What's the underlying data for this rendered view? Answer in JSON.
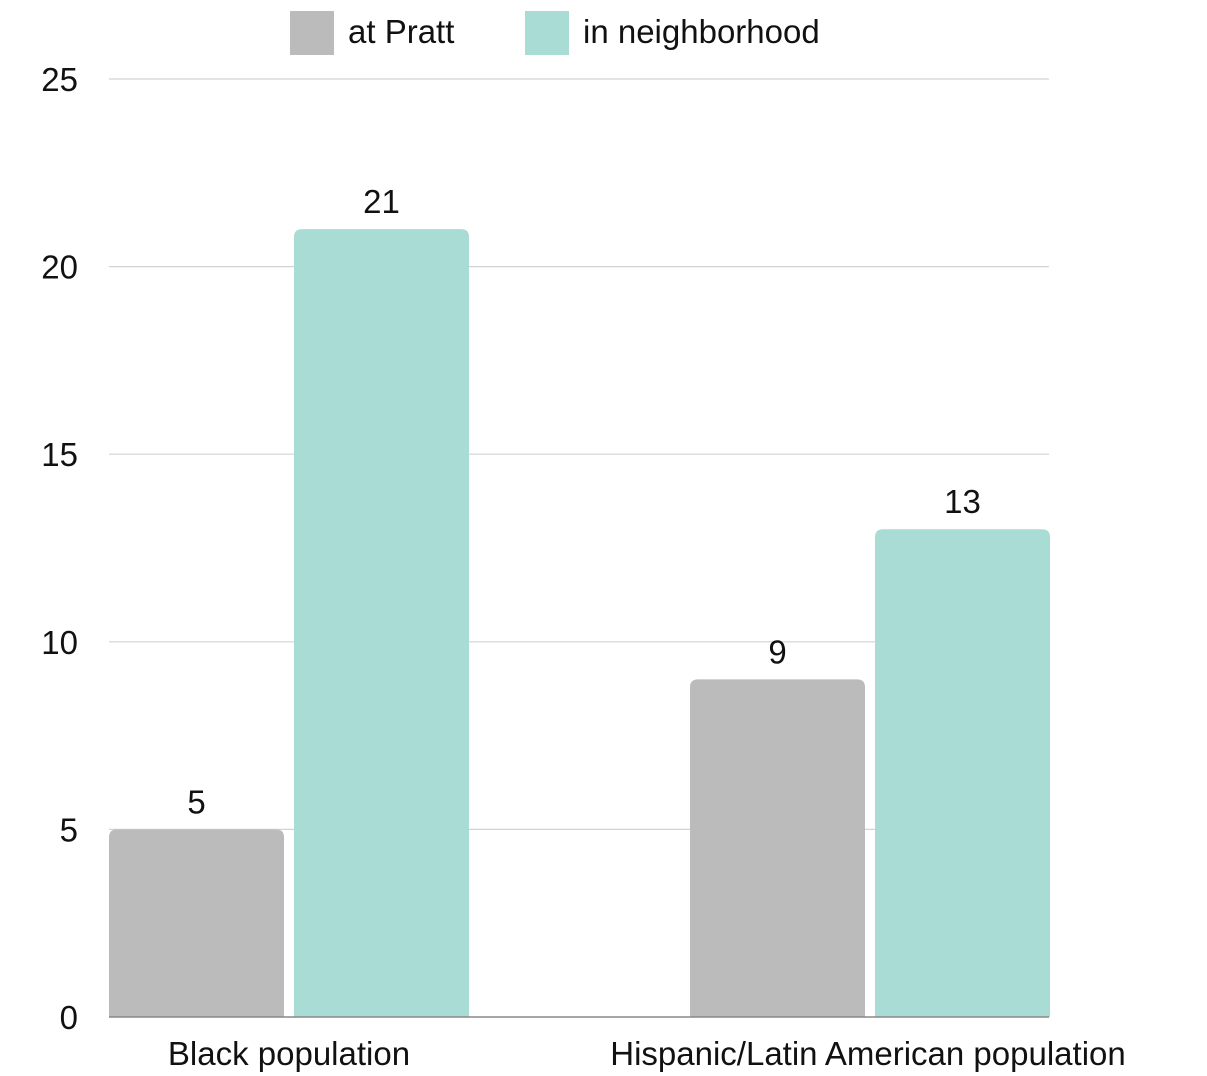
{
  "chart_data": {
    "type": "bar",
    "title": "",
    "xlabel": "",
    "ylabel": "",
    "categories": [
      "Black population",
      "Hispanic/Latin American population"
    ],
    "series": [
      {
        "name": "at Pratt",
        "values": [
          5,
          9
        ],
        "color": "#bbbbbb"
      },
      {
        "name": "in neighborhood",
        "values": [
          21,
          13
        ],
        "color": "#a8dcd4"
      }
    ],
    "data_labels": [
      [
        "5",
        "9"
      ],
      [
        "21",
        "13"
      ]
    ],
    "ylim": [
      0,
      25
    ],
    "yticks": [
      0,
      5,
      10,
      15,
      20,
      25
    ],
    "ytick_labels": [
      "0",
      "5",
      "10",
      "15",
      "20",
      "25"
    ],
    "grid": true,
    "legend": "top-center"
  }
}
